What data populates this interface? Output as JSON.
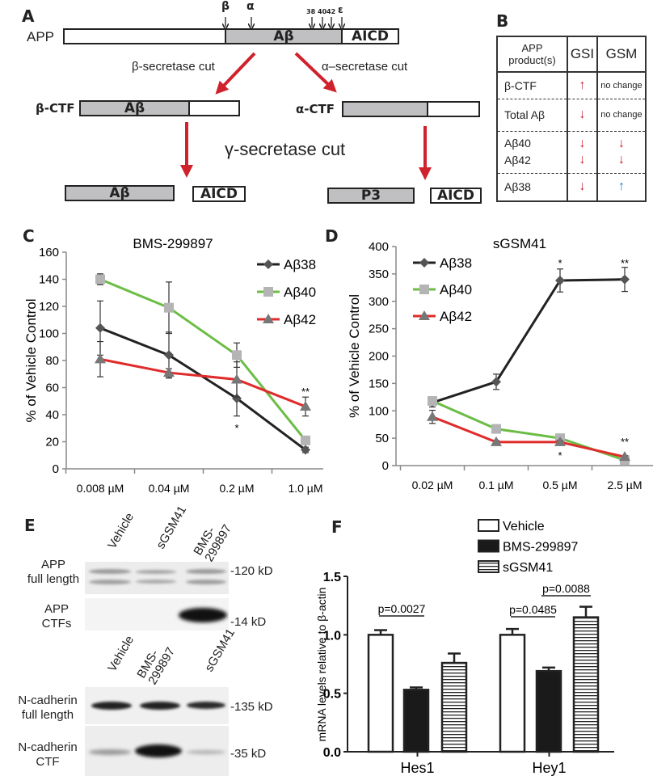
{
  "panel_a": {
    "label": "A",
    "app_label": "APP",
    "app_segments": {
      "abeta": "Aβ",
      "aicd": "AICD"
    },
    "cut_sites": [
      "β",
      "α",
      "38",
      "40",
      "42",
      "ε"
    ],
    "beta_cut": "β-secretase cut",
    "alpha_cut": "α–secretase cut",
    "gamma_cut": "γ-secretase cut",
    "beta_ctf": {
      "label": "β-CTF",
      "segment": "Aβ"
    },
    "alpha_ctf": {
      "label": "α-CTF"
    },
    "products_left": [
      "Aβ",
      "AICD"
    ],
    "products_right": [
      "P3",
      "AICD"
    ],
    "arrow_color": "#d0222c"
  },
  "panel_b": {
    "label": "B",
    "headers": [
      "APP product(s)",
      "GSI",
      "GSM"
    ],
    "rows": [
      {
        "product": "β-CTF",
        "gsi": "↑",
        "gsm": "no change"
      },
      {
        "product": "Total Aβ",
        "gsi": "↓",
        "gsm": "no change"
      },
      {
        "product": "Aβ40\nAβ42",
        "gsi": "↓\n↓",
        "gsm": "↓\n↓"
      },
      {
        "product": "Aβ38",
        "gsi": "↓",
        "gsm": "↑"
      }
    ]
  },
  "panel_c": {
    "label": "C"
  },
  "panel_d": {
    "label": "D"
  },
  "panel_e": {
    "label": "E",
    "lanes_top": [
      "Vehicle",
      "sGSM41",
      "BMS-\n299897"
    ],
    "lanes_bottom": [
      "Vehicle",
      "BMS-\n299897",
      "sGSM41"
    ],
    "rows": [
      {
        "label": "APP\nfull length",
        "kd": "-120 kD"
      },
      {
        "label": "APP\nCTFs",
        "kd": "-14 kD"
      },
      {
        "label": "N-cadherin\nfull length",
        "kd": "-135 kD"
      },
      {
        "label": "N-cadherin\nCTF",
        "kd": "-35 kD"
      }
    ]
  },
  "panel_f": {
    "label": "F"
  },
  "chart_data": [
    {
      "id": "C",
      "type": "line",
      "title": "BMS-299897",
      "ylabel": "% of Vehicle Control",
      "xlabel": "",
      "categories": [
        "0.008 µM",
        "0.04 µM",
        "0.2 µM",
        "1.0  µM"
      ],
      "ylim": [
        0,
        160
      ],
      "yticks": [
        0,
        20,
        40,
        60,
        80,
        100,
        120,
        140,
        160
      ],
      "grid": false,
      "legend": "top-right",
      "series": [
        {
          "name": "Aβ38",
          "color": "#222222",
          "marker": "diamond",
          "values": [
            104,
            84,
            52,
            14
          ],
          "errors": [
            20,
            17,
            13,
            2
          ]
        },
        {
          "name": "Aβ40",
          "color": "#6cbd45",
          "marker": "square",
          "values": [
            140,
            119,
            84,
            21
          ],
          "errors": [
            4,
            19,
            9,
            2
          ]
        },
        {
          "name": "Aβ42",
          "color": "#e02b2b",
          "marker": "triangle",
          "values": [
            81,
            71,
            66,
            46
          ],
          "errors": [
            13,
            3,
            13,
            7
          ]
        }
      ],
      "annotations": [
        {
          "category": "0.2 µM",
          "text": "*",
          "position": "below"
        },
        {
          "category": "1.0  µM",
          "text": "**",
          "position": "above"
        }
      ]
    },
    {
      "id": "D",
      "type": "line",
      "title": "sGSM41",
      "ylabel": "% of Vehicle Control",
      "xlabel": "",
      "categories": [
        "0.02 µM",
        "0.1 µM",
        "0.5 µM",
        "2.5 µM"
      ],
      "ylim": [
        0,
        400
      ],
      "yticks": [
        0,
        50,
        100,
        150,
        200,
        250,
        300,
        350,
        400
      ],
      "grid": false,
      "legend": "top-left",
      "series": [
        {
          "name": "Aβ38",
          "color": "#222222",
          "marker": "diamond",
          "values": [
            115,
            153,
            338,
            340
          ],
          "errors": [
            8,
            14,
            21,
            22
          ]
        },
        {
          "name": "Aβ40",
          "color": "#6cbd45",
          "marker": "square",
          "values": [
            118,
            67,
            50,
            10
          ],
          "errors": [
            5,
            3,
            3,
            2
          ]
        },
        {
          "name": "Aβ42",
          "color": "#e02b2b",
          "marker": "triangle",
          "values": [
            89,
            43,
            43,
            16
          ],
          "errors": [
            12,
            3,
            3,
            2
          ]
        }
      ],
      "annotations": [
        {
          "category": "0.5 µM",
          "text": "*",
          "position": "top"
        },
        {
          "category": "2.5 µM",
          "text": "**",
          "position": "top"
        },
        {
          "category": "0.5 µM",
          "text": "*",
          "position": "bottom"
        },
        {
          "category": "2.5 µM",
          "text": "**",
          "position": "bottom"
        }
      ]
    },
    {
      "id": "F",
      "type": "bar",
      "title": "",
      "ylabel": "mRNA levels relative to β-actin",
      "xlabel": "",
      "categories": [
        "Hes1",
        "Hey1"
      ],
      "ylim": [
        0,
        1.5
      ],
      "yticks": [
        "0.0",
        "0.5",
        "1.0",
        "1.5"
      ],
      "grid": false,
      "legend": "top-right",
      "series": [
        {
          "name": "Vehicle",
          "fill": "white",
          "values": [
            1.0,
            1.0
          ],
          "errors": [
            0.04,
            0.05
          ]
        },
        {
          "name": "BMS-299897",
          "fill": "black",
          "values": [
            0.53,
            0.69
          ],
          "errors": [
            0.02,
            0.03
          ]
        },
        {
          "name": "sGSM41",
          "fill": "striped",
          "values": [
            0.76,
            1.15
          ],
          "errors": [
            0.08,
            0.09
          ]
        }
      ],
      "annotations": [
        {
          "text": "p=0.0027",
          "category": "Hes1",
          "between": [
            "Vehicle",
            "BMS-299897"
          ]
        },
        {
          "text": "p=0.0485",
          "category": "Hey1",
          "between": [
            "Vehicle",
            "BMS-299897"
          ]
        },
        {
          "text": "p=0.0088",
          "category": "Hey1",
          "between": [
            "BMS-299897",
            "sGSM41"
          ]
        }
      ]
    }
  ]
}
